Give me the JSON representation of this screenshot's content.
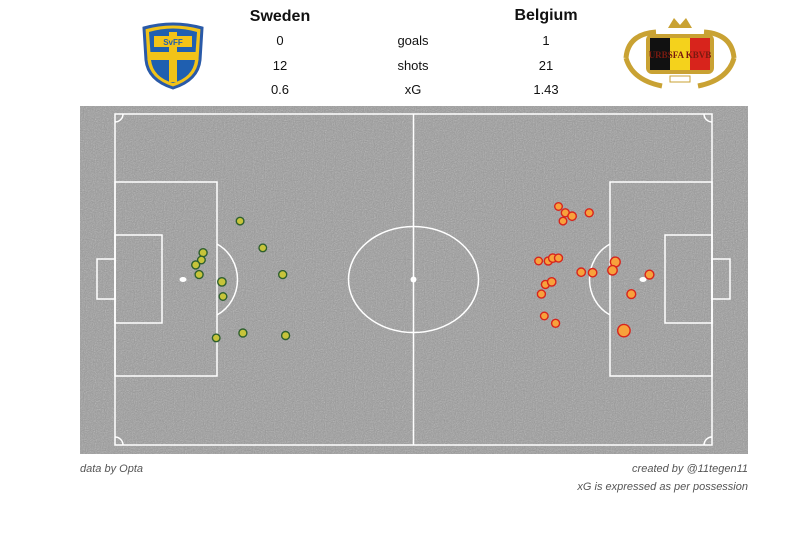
{
  "header": {
    "home_team": "Sweden",
    "away_team": "Belgium",
    "rows": [
      {
        "label": "goals",
        "home": "0",
        "away": "1"
      },
      {
        "label": "shots",
        "home": "12",
        "away": "21"
      },
      {
        "label": "xG",
        "home": "0.6",
        "away": "1.43"
      }
    ]
  },
  "logos": {
    "home": {
      "text": "SvFF",
      "icon": "svff-crest"
    },
    "away": {
      "text": "URBSFA KBVB",
      "icon": "urbsfa-crest"
    }
  },
  "footer": {
    "left": "data by Opta",
    "right1": "created by @11tegen11",
    "right2": "xG is expressed as per possession"
  },
  "colors": {
    "home_fill": "#c7c43a",
    "home_edge": "#2e5f2e",
    "away_fill": "#f7a23c",
    "away_edge": "#d8241c",
    "pitch_bg": "#9a9a9a",
    "lines": "#ffffff"
  },
  "chart_data": {
    "type": "scatter",
    "title": "",
    "note": "shot map; x in metres from left goal line (0-105), y in metres from top touchline (0-68); size = xG",
    "xlim": [
      0,
      105
    ],
    "ylim": [
      0,
      68
    ],
    "series": [
      {
        "name": "Sweden",
        "points": [
          {
            "x": 22.0,
            "y": 22.0,
            "xG": 0.03
          },
          {
            "x": 15.5,
            "y": 28.5,
            "xG": 0.04
          },
          {
            "x": 15.2,
            "y": 30.0,
            "xG": 0.03
          },
          {
            "x": 14.2,
            "y": 31.0,
            "xG": 0.04
          },
          {
            "x": 14.8,
            "y": 33.0,
            "xG": 0.04
          },
          {
            "x": 26.0,
            "y": 27.5,
            "xG": 0.03
          },
          {
            "x": 29.5,
            "y": 33.0,
            "xG": 0.04
          },
          {
            "x": 18.8,
            "y": 34.5,
            "xG": 0.05
          },
          {
            "x": 19.0,
            "y": 37.5,
            "xG": 0.03
          },
          {
            "x": 17.8,
            "y": 46.0,
            "xG": 0.03
          },
          {
            "x": 22.5,
            "y": 45.0,
            "xG": 0.04
          },
          {
            "x": 30.0,
            "y": 45.5,
            "xG": 0.04
          }
        ]
      },
      {
        "name": "Belgium",
        "points": [
          {
            "x": 78.0,
            "y": 19.0,
            "xG": 0.03
          },
          {
            "x": 79.2,
            "y": 20.3,
            "xG": 0.04
          },
          {
            "x": 80.4,
            "y": 21.0,
            "xG": 0.05
          },
          {
            "x": 83.4,
            "y": 20.3,
            "xG": 0.04
          },
          {
            "x": 78.8,
            "y": 22.0,
            "xG": 0.03
          },
          {
            "x": 74.5,
            "y": 30.2,
            "xG": 0.03
          },
          {
            "x": 76.2,
            "y": 30.2,
            "xG": 0.04
          },
          {
            "x": 77.0,
            "y": 29.6,
            "xG": 0.05
          },
          {
            "x": 78.0,
            "y": 29.6,
            "xG": 0.04
          },
          {
            "x": 82.0,
            "y": 32.5,
            "xG": 0.05
          },
          {
            "x": 84.0,
            "y": 32.6,
            "xG": 0.05
          },
          {
            "x": 88.0,
            "y": 30.4,
            "xG": 0.09
          },
          {
            "x": 87.5,
            "y": 32.1,
            "xG": 0.08
          },
          {
            "x": 94.0,
            "y": 33.0,
            "xG": 0.06
          },
          {
            "x": 75.7,
            "y": 35.0,
            "xG": 0.04
          },
          {
            "x": 76.8,
            "y": 34.5,
            "xG": 0.05
          },
          {
            "x": 75.0,
            "y": 37.0,
            "xG": 0.04
          },
          {
            "x": 90.8,
            "y": 37.0,
            "xG": 0.06
          },
          {
            "x": 75.5,
            "y": 41.5,
            "xG": 0.03
          },
          {
            "x": 77.5,
            "y": 43.0,
            "xG": 0.04
          },
          {
            "x": 89.5,
            "y": 44.5,
            "xG": 0.2
          }
        ]
      }
    ]
  }
}
